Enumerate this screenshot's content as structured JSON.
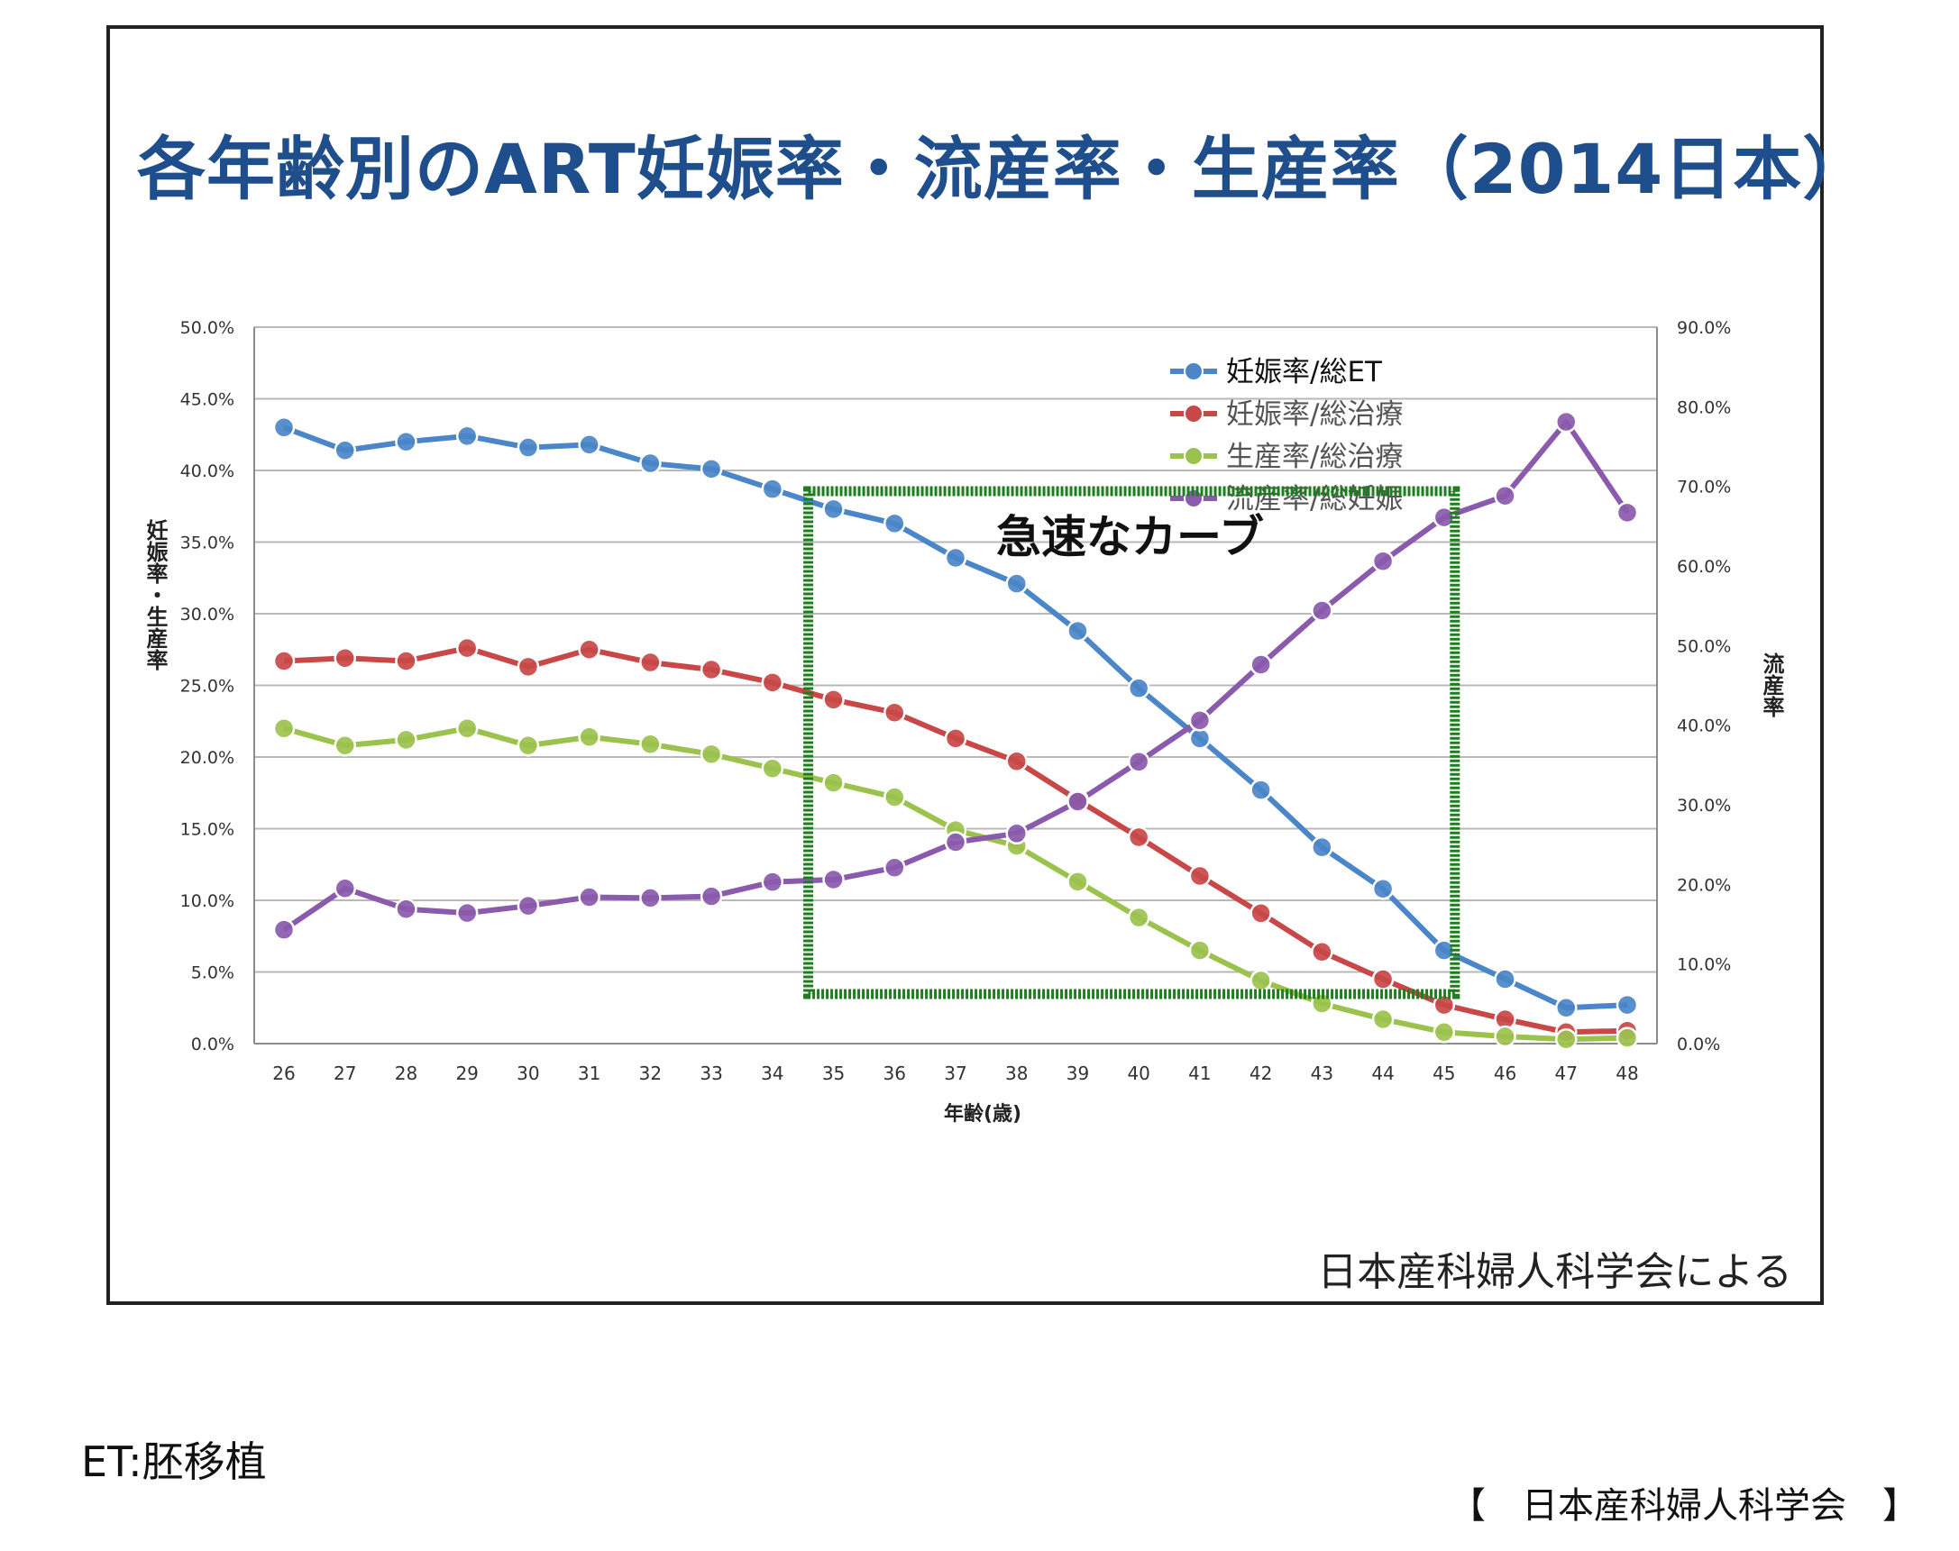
{
  "title": "各年齢別のART妊娠率・流産率・生産率（2014日本）",
  "annotation": "急速なカーブ",
  "source_note": "日本産科婦人科学会による",
  "et_note": "ET:胚移植",
  "footer_source": "【　日本産科婦人科学会　】",
  "colors": {
    "title": "#1f4e8c",
    "highlight_box": "#1e7d1e"
  },
  "chart_data": {
    "type": "line",
    "xlabel": "年齢(歳)",
    "ylabel": "妊娠率・生産率",
    "y2label": "流産率",
    "x": [
      26,
      27,
      28,
      29,
      30,
      31,
      32,
      33,
      34,
      35,
      36,
      37,
      38,
      39,
      40,
      41,
      42,
      43,
      44,
      45,
      46,
      47,
      48
    ],
    "ylim": [
      0,
      50
    ],
    "y2lim": [
      0,
      90
    ],
    "yticks": [
      "0.0%",
      "5.0%",
      "10.0%",
      "15.0%",
      "20.0%",
      "25.0%",
      "30.0%",
      "35.0%",
      "40.0%",
      "45.0%",
      "50.0%"
    ],
    "y2ticks": [
      "0.0%",
      "10.0%",
      "20.0%",
      "30.0%",
      "40.0%",
      "50.0%",
      "60.0%",
      "70.0%",
      "80.0%",
      "90.0%"
    ],
    "grid": true,
    "legend_position": "top-right",
    "highlight_range": [
      35,
      45
    ],
    "series": [
      {
        "name": "妊娠率/総ET",
        "axis": "left",
        "color": "#4a86c8",
        "values": [
          43.0,
          41.4,
          42.0,
          42.4,
          41.6,
          41.8,
          40.5,
          40.1,
          38.7,
          37.3,
          36.3,
          33.9,
          32.1,
          28.8,
          24.8,
          21.3,
          17.7,
          13.7,
          10.8,
          6.5,
          4.5,
          2.5,
          2.7
        ]
      },
      {
        "name": "妊娠率/総治療",
        "axis": "left",
        "color": "#c84848",
        "values": [
          26.7,
          26.9,
          26.7,
          27.6,
          26.3,
          27.5,
          26.6,
          26.1,
          25.2,
          24.0,
          23.1,
          21.3,
          19.7,
          17.0,
          14.4,
          11.7,
          9.1,
          6.4,
          4.5,
          2.7,
          1.7,
          0.8,
          0.9
        ]
      },
      {
        "name": "生産率/総治療",
        "axis": "left",
        "color": "#9cc24e",
        "values": [
          22.0,
          20.8,
          21.2,
          22.0,
          20.8,
          21.4,
          20.9,
          20.2,
          19.2,
          18.2,
          17.2,
          14.9,
          13.8,
          11.3,
          8.8,
          6.5,
          4.4,
          2.8,
          1.7,
          0.8,
          0.5,
          0.3,
          0.4
        ]
      },
      {
        "name": "流産率/総妊娠",
        "axis": "right",
        "color": "#8a5aad",
        "values": [
          14.3,
          19.5,
          16.9,
          16.4,
          17.3,
          18.4,
          18.3,
          18.5,
          20.3,
          20.6,
          22.1,
          25.3,
          26.4,
          30.4,
          35.4,
          40.6,
          47.6,
          54.4,
          60.6,
          66.1,
          68.8,
          78.1,
          66.7
        ]
      }
    ]
  }
}
